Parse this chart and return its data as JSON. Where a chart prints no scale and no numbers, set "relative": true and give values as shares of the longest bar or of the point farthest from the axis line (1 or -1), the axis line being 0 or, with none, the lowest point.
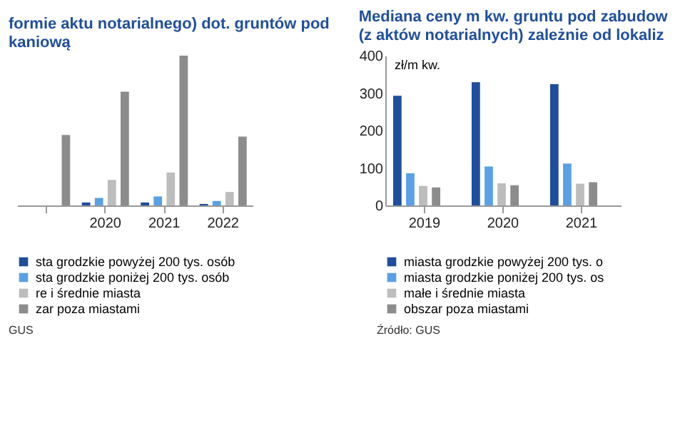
{
  "chart_data": [
    {
      "type": "bar",
      "relative": true,
      "title": "formie aktu notarialnego) dot. gruntów pod\nkaniową",
      "categories": [
        null,
        "2020",
        "2021",
        "2022"
      ],
      "legend": "bottom",
      "annotations": [
        "GUS"
      ],
      "series": [
        {
          "name": "sta grodzkie powyżej 200 tys. osób",
          "color": "#1f4e9c",
          "values": [
            null,
            0.02,
            0.02,
            0.01
          ]
        },
        {
          "name": "sta grodzkie poniżej 200 tys. osób",
          "color": "#5aa0e6",
          "values": [
            null,
            0.05,
            0.06,
            0.03
          ]
        },
        {
          "name": "re i średnie miasta",
          "color": "#bdbdbd",
          "values": [
            null,
            0.17,
            0.22,
            0.09
          ]
        },
        {
          "name": "zar poza miastami",
          "color": "#8c8c8c",
          "values": [
            0.47,
            0.76,
            1,
            0.46
          ]
        }
      ]
    },
    {
      "type": "bar",
      "title": "Mediana ceny m kw. gruntu pod zabudow\n(z aktów notarialnych) zależnie od lokaliz",
      "ylabel": "zł/m kw.",
      "categories": [
        "2019",
        "2020",
        "2021"
      ],
      "ylim": [
        0,
        400
      ],
      "yticks": [
        0,
        100,
        200,
        300,
        400
      ],
      "legend": "bottom",
      "grid": false,
      "annotations": [
        "Źródło: GUS"
      ],
      "series": [
        {
          "name": "miasta grodzkie powyżej 200 tys. o",
          "color": "#1f4e9c",
          "values": [
            293,
            329,
            324
          ]
        },
        {
          "name": "miasta grodzkie poniżej 200 tys. os",
          "color": "#5aa0e6",
          "values": [
            86,
            104,
            112
          ]
        },
        {
          "name": "małe i średnie miasta",
          "color": "#bdbdbd",
          "values": [
            52,
            59,
            58
          ]
        },
        {
          "name": "obszar poza miastami",
          "color": "#8c8c8c",
          "values": [
            48,
            54,
            62
          ]
        }
      ]
    }
  ]
}
